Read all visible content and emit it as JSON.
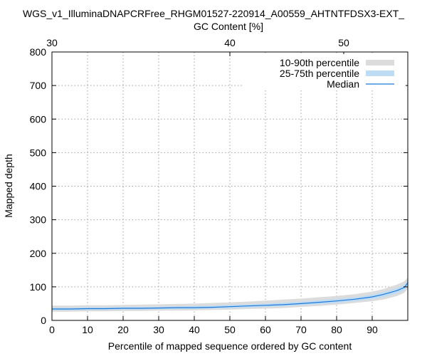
{
  "chart_data": {
    "type": "area",
    "title": "WGS_v1_IlluminaDNAPCRFree_RHGM01527-220914_A00559_AHTNTFDSX3-EXT_",
    "xlabel": "Percentile of mapped sequence ordered by GC content",
    "ylabel": "Mapped depth",
    "x2label": "GC Content [%]",
    "xlim": [
      0,
      100
    ],
    "ylim": [
      0,
      800
    ],
    "xticks": [
      0,
      10,
      20,
      30,
      40,
      50,
      60,
      70,
      80,
      90
    ],
    "yticks": [
      0,
      100,
      200,
      300,
      400,
      500,
      600,
      700,
      800
    ],
    "x2ticks": [
      {
        "label": "30",
        "at": 0
      },
      {
        "label": "40",
        "at": 50
      },
      {
        "label": "50",
        "at": 82
      }
    ],
    "grid": true,
    "legend_position": "top-right",
    "legend": [
      {
        "label": "10-90th percentile",
        "color": "#dcdcdc",
        "kind": "band"
      },
      {
        "label": "25-75th percentile",
        "color": "#bfdcf5",
        "kind": "band"
      },
      {
        "label": "Median",
        "color": "#1e78d6",
        "kind": "line"
      }
    ],
    "colors": {
      "band_outer": "#dcdcdc",
      "band_inner": "#bfdcf5",
      "median": "#1e78d6"
    },
    "x": [
      0,
      5,
      10,
      15,
      20,
      25,
      30,
      35,
      40,
      45,
      50,
      55,
      60,
      65,
      70,
      75,
      80,
      85,
      90,
      93,
      95,
      97,
      99,
      100
    ],
    "median": [
      34,
      34,
      35,
      35,
      36,
      36,
      37,
      38,
      38,
      39,
      41,
      43,
      45,
      47,
      50,
      54,
      58,
      63,
      70,
      77,
      83,
      89,
      98,
      112
    ],
    "p25": [
      30,
      30,
      31,
      31,
      32,
      32,
      33,
      33,
      34,
      35,
      36,
      38,
      40,
      42,
      45,
      48,
      52,
      57,
      63,
      69,
      75,
      81,
      90,
      103
    ],
    "p75": [
      38,
      38,
      39,
      39,
      40,
      40,
      41,
      42,
      43,
      44,
      46,
      48,
      50,
      53,
      56,
      60,
      64,
      69,
      77,
      84,
      90,
      97,
      106,
      120
    ],
    "p10": [
      26,
      26,
      27,
      27,
      28,
      28,
      29,
      29,
      30,
      31,
      32,
      34,
      35,
      37,
      40,
      43,
      47,
      52,
      57,
      62,
      67,
      73,
      82,
      95
    ],
    "p90": [
      44,
      44,
      45,
      45,
      46,
      47,
      48,
      49,
      50,
      52,
      54,
      56,
      59,
      62,
      65,
      69,
      73,
      78,
      86,
      93,
      100,
      107,
      116,
      128
    ]
  }
}
